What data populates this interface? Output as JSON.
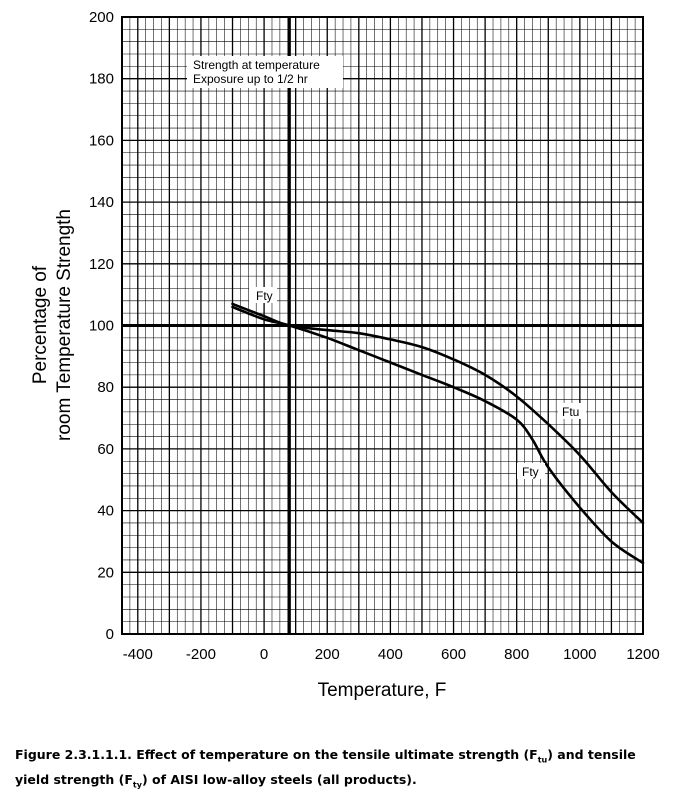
{
  "chart_data": {
    "type": "line",
    "xlabel": "Temperature, F",
    "ylabel_lines": [
      "Percentage of",
      "room Temperature Strength"
    ],
    "xlim": [
      -450,
      1200
    ],
    "ylim": [
      0,
      200
    ],
    "x_ticks": [
      -400,
      -200,
      0,
      200,
      400,
      600,
      800,
      1000,
      1200
    ],
    "y_ticks": [
      0,
      20,
      40,
      60,
      80,
      100,
      120,
      140,
      160,
      180,
      200
    ],
    "grid": true,
    "reference_lines": {
      "x": 80,
      "y": 100
    },
    "annotation_lines": [
      "Strength at temperature",
      "Exposure up to 1/2 hr"
    ],
    "series": [
      {
        "name": "Ftu",
        "x": [
          -100,
          0,
          80,
          200,
          300,
          400,
          500,
          600,
          700,
          800,
          900,
          1000,
          1100,
          1200
        ],
        "y": [
          107,
          103,
          100,
          98.5,
          97.5,
          95.5,
          93,
          89,
          84,
          77,
          68,
          58,
          46,
          36
        ]
      },
      {
        "name": "Fty",
        "x": [
          -100,
          0,
          80,
          200,
          300,
          400,
          500,
          600,
          700,
          800,
          850,
          900,
          1000,
          1100,
          1200
        ],
        "y": [
          106,
          102,
          100,
          96,
          92,
          88,
          84,
          80,
          75.5,
          69.5,
          63,
          54,
          41,
          30,
          23
        ]
      }
    ],
    "series_labels": [
      "Fty",
      "Ftu",
      "Fty"
    ]
  },
  "caption": {
    "prefix": "Figure 2.3.1.1.1.  Effect of temperature on the tensile ultimate strength (F",
    "sub1": "tu",
    "middle": ") and tensile yield strength (F",
    "sub2": "ty",
    "suffix": ") of AISI low-alloy steels (all products)."
  }
}
